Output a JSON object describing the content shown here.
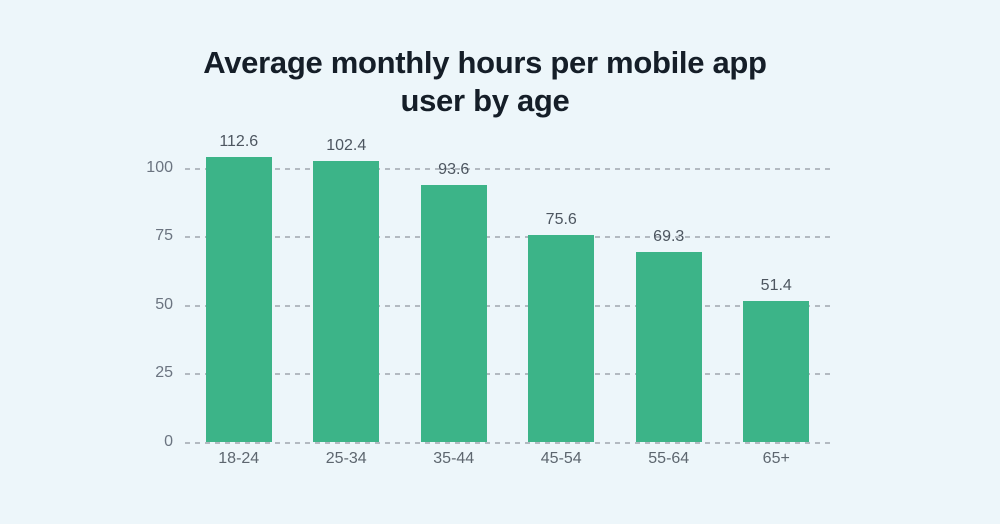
{
  "title_lines": [
    "Average monthly hours per mobile app",
    "user by age"
  ],
  "chart_data": {
    "type": "bar",
    "title": "Average monthly hours per mobile app user by age",
    "categories": [
      "18-24",
      "25-34",
      "35-44",
      "45-54",
      "55-64",
      "65+"
    ],
    "values": [
      112.6,
      102.4,
      93.6,
      75.6,
      69.3,
      51.4
    ],
    "xlabel": "",
    "ylabel": "",
    "yticks": [
      0,
      25,
      50,
      75,
      100
    ],
    "ylim": [
      0,
      104
    ],
    "grid": "horizontal-dashed",
    "legend": "none",
    "value_labels_shown": true
  },
  "colors": {
    "background": "#edf6fa",
    "bar": "#3cb488",
    "title": "#151e28",
    "value_label": "#4d5660",
    "y_axis_label": "#6b7480",
    "x_axis_label": "#5d666f",
    "gridline": "#b3bac1"
  }
}
